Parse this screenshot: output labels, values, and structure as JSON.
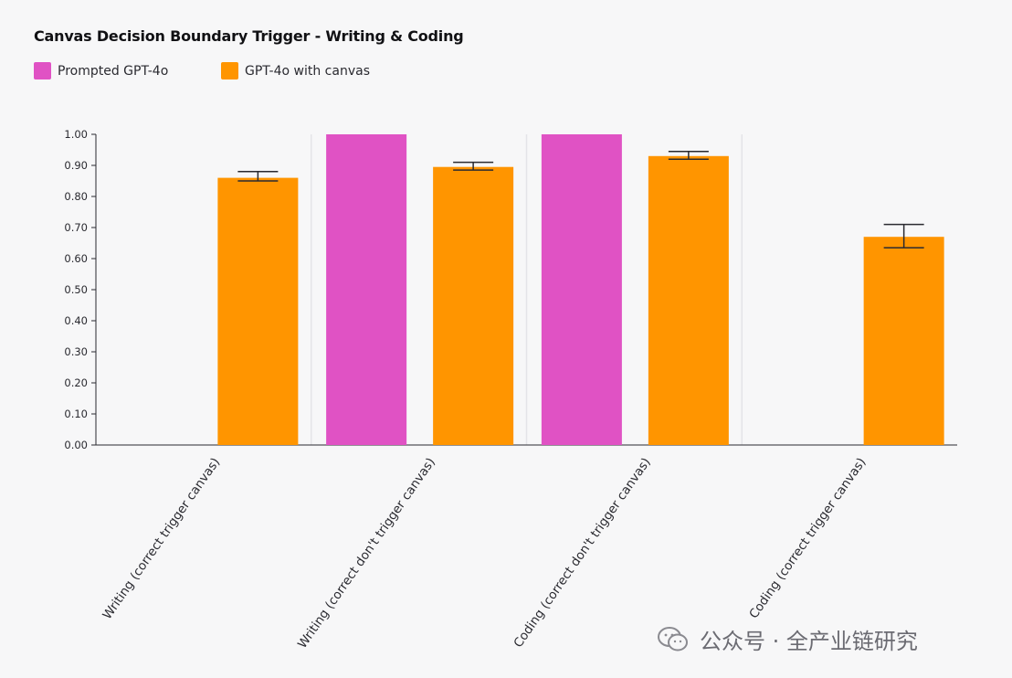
{
  "chart_data": {
    "type": "bar",
    "title": "Canvas Decision Boundary Trigger - Writing & Coding",
    "xlabel": "",
    "ylabel": "",
    "ylim": [
      0,
      1.0
    ],
    "yticks": [
      "0.00",
      "0.10",
      "0.20",
      "0.30",
      "0.40",
      "0.50",
      "0.60",
      "0.70",
      "0.80",
      "0.90",
      "1.00"
    ],
    "grid": false,
    "legend_position": "top-left",
    "categories": [
      "Writing (correct trigger canvas)",
      "Writing (correct don't trigger canvas)",
      "Coding (correct don't trigger canvas)",
      "Coding (correct trigger canvas)"
    ],
    "series": [
      {
        "name": "Prompted GPT-4o",
        "color": "#e052c4",
        "values": [
          null,
          1.0,
          1.0,
          null
        ],
        "error": [
          null,
          null,
          null,
          null
        ]
      },
      {
        "name": "GPT-4o with canvas",
        "color": "#ff9500",
        "values": [
          0.86,
          0.895,
          0.93,
          0.67
        ],
        "error": [
          [
            0.85,
            0.88
          ],
          [
            0.885,
            0.91
          ],
          [
            0.92,
            0.945
          ],
          [
            0.635,
            0.71
          ]
        ]
      }
    ]
  },
  "watermark": {
    "text": "公众号 · 全产业链研究",
    "icon": "wechat-icon"
  }
}
